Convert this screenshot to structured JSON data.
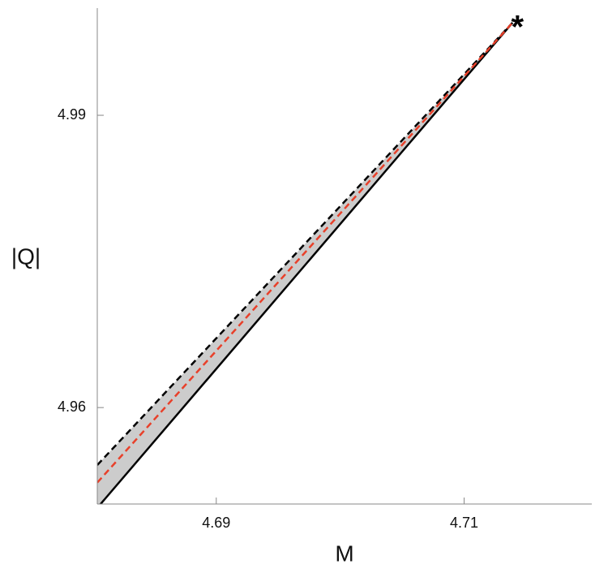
{
  "chart_data": {
    "type": "line",
    "x_label": "M",
    "y_label": "|Q|",
    "x": [
      4.6804,
      4.7139
    ],
    "series": [
      {
        "color": "#000000",
        "dash": false,
        "values": [
          4.9497,
          4.9995
        ]
      },
      {
        "color": "#000000",
        "dash": true,
        "values": [
          4.9541,
          4.9995
        ]
      },
      {
        "color": "#e8402a",
        "dash": true,
        "values": [
          4.9523,
          4.9995
        ]
      }
    ],
    "fill_between": {
      "color": "#cccccc",
      "series": [
        0,
        1
      ]
    },
    "annotation": {
      "text": "*",
      "x": 4.7143,
      "y": 4.9995
    },
    "xlim": [
      4.6804,
      4.7203
    ],
    "ylim": [
      4.9501,
      5.001
    ],
    "xticks": [
      4.69,
      4.71
    ],
    "yticks": [
      4.96,
      4.99
    ],
    "grid": false
  }
}
